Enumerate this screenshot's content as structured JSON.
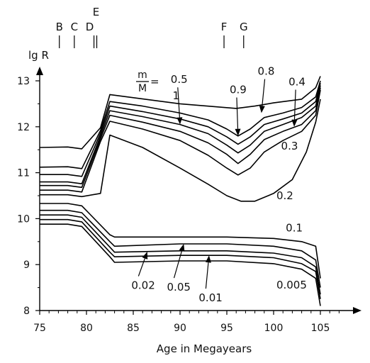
{
  "chart_data": {
    "type": "line",
    "title": "",
    "xlabel": "Age in Megayears",
    "ylabel": "lg R",
    "xlim": [
      75,
      108
    ],
    "ylim": [
      8,
      13.3
    ],
    "xticks": [
      75,
      80,
      85,
      90,
      95,
      100,
      105
    ],
    "yticks": [
      8,
      9,
      10,
      11,
      12,
      13
    ],
    "param_label": {
      "numerator": "m",
      "denominator": "M",
      "equals": "="
    },
    "epoch_markers": [
      {
        "name": "B",
        "x": 77.1
      },
      {
        "name": "C",
        "x": 78.7
      },
      {
        "name": "D",
        "x": 80.8
      },
      {
        "name": "E",
        "x": 81.1
      },
      {
        "name": "F",
        "x": 94.7
      },
      {
        "name": "G",
        "x": 96.8
      }
    ],
    "series": [
      {
        "name": "1",
        "x": [
          75,
          78,
          79.5,
          81.5,
          82.5,
          90,
          96,
          98,
          100,
          103,
          104.5,
          105
        ],
        "values": [
          11.55,
          11.56,
          11.52,
          11.98,
          12.7,
          12.5,
          12.4,
          12.45,
          12.52,
          12.6,
          12.85,
          13.1
        ]
      },
      {
        "name": "0.9",
        "x": [
          75,
          78,
          79.5,
          81.5,
          82.5,
          86,
          90,
          93,
          95,
          96.2,
          97.5,
          99,
          101,
          103,
          104.5,
          105
        ],
        "values": [
          11.12,
          11.13,
          11.09,
          11.92,
          12.55,
          12.45,
          12.3,
          12.15,
          11.95,
          11.8,
          11.95,
          12.2,
          12.3,
          12.42,
          12.65,
          13.0
        ]
      },
      {
        "name": "0.8",
        "x": [
          75,
          78,
          79.5,
          81.5,
          82.5,
          86,
          90,
          93,
          95,
          96.2,
          97.5,
          99,
          101,
          103,
          104.5,
          105
        ],
        "values": [
          10.96,
          10.96,
          10.92,
          11.86,
          12.45,
          12.33,
          12.17,
          12.0,
          11.78,
          11.62,
          11.78,
          12.05,
          12.17,
          12.3,
          12.55,
          12.95
        ]
      },
      {
        "name": "0.5",
        "x": [
          75,
          78,
          79.5,
          81.5,
          82.5,
          86,
          90,
          93,
          95,
          96.2,
          97.5,
          99,
          101,
          103,
          104.5,
          105
        ],
        "values": [
          10.8,
          10.8,
          10.76,
          11.8,
          12.35,
          12.22,
          12.05,
          11.85,
          11.6,
          11.43,
          11.6,
          11.9,
          12.05,
          12.2,
          12.45,
          12.9
        ]
      },
      {
        "name": "0.4",
        "x": [
          75,
          78,
          79.5,
          81.5,
          82.5,
          86,
          90,
          93,
          95,
          96.2,
          97.5,
          99,
          101,
          103,
          104.5,
          105
        ],
        "values": [
          10.72,
          10.72,
          10.68,
          11.74,
          12.25,
          12.1,
          11.9,
          11.65,
          11.4,
          11.2,
          11.4,
          11.72,
          11.9,
          12.05,
          12.35,
          12.85
        ]
      },
      {
        "name": "0.3",
        "x": [
          75,
          78,
          79.5,
          81.5,
          82.5,
          86,
          90,
          93,
          95,
          96.2,
          97.5,
          99,
          101,
          103,
          104.5,
          105
        ],
        "values": [
          10.62,
          10.62,
          10.58,
          11.68,
          12.12,
          11.95,
          11.7,
          11.38,
          11.1,
          10.95,
          11.1,
          11.45,
          11.7,
          11.9,
          12.25,
          12.8
        ]
      },
      {
        "name": "0.2",
        "x": [
          75,
          78,
          79.5,
          81.5,
          82.5,
          86,
          90,
          93,
          95,
          96.5,
          98,
          100,
          102,
          103.5,
          104.5,
          105
        ],
        "values": [
          10.52,
          10.52,
          10.48,
          10.55,
          11.82,
          11.55,
          11.1,
          10.75,
          10.5,
          10.38,
          10.38,
          10.55,
          10.85,
          11.45,
          12.1,
          12.6
        ]
      },
      {
        "name": "0.1",
        "x": [
          75,
          78,
          79.5,
          82.5,
          83,
          90,
          95,
          100,
          103,
          104.5,
          105
        ],
        "values": [
          10.33,
          10.33,
          10.28,
          9.65,
          9.6,
          9.6,
          9.6,
          9.57,
          9.5,
          9.4,
          8.7
        ]
      },
      {
        "name": "0.05",
        "x": [
          75,
          78,
          79.5,
          82.5,
          83,
          90,
          95,
          100,
          103,
          104.5,
          105
        ],
        "values": [
          10.18,
          10.18,
          10.13,
          9.5,
          9.4,
          9.45,
          9.45,
          9.4,
          9.3,
          9.1,
          8.5
        ]
      },
      {
        "name": "0.02",
        "x": [
          75,
          78,
          79.5,
          82.5,
          83,
          90,
          95,
          100,
          103,
          104.5,
          105
        ],
        "values": [
          10.08,
          10.08,
          10.03,
          9.38,
          9.27,
          9.3,
          9.3,
          9.25,
          9.15,
          8.95,
          8.35
        ]
      },
      {
        "name": "0.01",
        "x": [
          75,
          78,
          79.5,
          82.5,
          83,
          90,
          95,
          100,
          103,
          104.5,
          105
        ],
        "values": [
          9.98,
          9.98,
          9.93,
          9.27,
          9.17,
          9.2,
          9.2,
          9.15,
          9.02,
          8.85,
          8.25
        ]
      },
      {
        "name": "0.005",
        "x": [
          75,
          78,
          79.5,
          82.5,
          83,
          90,
          95,
          100,
          103,
          104.5,
          105
        ],
        "values": [
          9.88,
          9.88,
          9.83,
          9.17,
          9.05,
          9.08,
          9.08,
          9.02,
          8.9,
          8.7,
          8.1
        ]
      }
    ],
    "annotations": [
      {
        "text": "1",
        "x": 89.2,
        "y": 12.6,
        "arrow_to": null
      },
      {
        "text": "0.5",
        "x": 89.0,
        "y": 12.95,
        "arrow_to": [
          90,
          12.05
        ]
      },
      {
        "text": "0.9",
        "x": 95.3,
        "y": 12.73,
        "arrow_to": [
          96.2,
          11.8
        ]
      },
      {
        "text": "0.8",
        "x": 98.3,
        "y": 13.13,
        "arrow_to": [
          98.7,
          12.3
        ]
      },
      {
        "text": "0.4",
        "x": 101.6,
        "y": 12.9,
        "arrow_to": [
          102.2,
          12.0
        ]
      },
      {
        "text": "0.3",
        "x": 100.8,
        "y": 11.5,
        "arrow_to": null
      },
      {
        "text": "0.2",
        "x": 100.3,
        "y": 10.42,
        "arrow_to": null
      },
      {
        "text": "0.1",
        "x": 101.3,
        "y": 9.72,
        "arrow_to": null
      },
      {
        "text": "0.02",
        "x": 84.8,
        "y": 8.47,
        "arrow_to": [
          86.5,
          9.28
        ]
      },
      {
        "text": "0.05",
        "x": 88.6,
        "y": 8.43,
        "arrow_to": [
          90.4,
          9.45
        ]
      },
      {
        "text": "0.01",
        "x": 92.0,
        "y": 8.2,
        "arrow_to": [
          93.1,
          9.2
        ]
      },
      {
        "text": "0.005",
        "x": 100.3,
        "y": 8.48,
        "arrow_to": null
      }
    ]
  }
}
